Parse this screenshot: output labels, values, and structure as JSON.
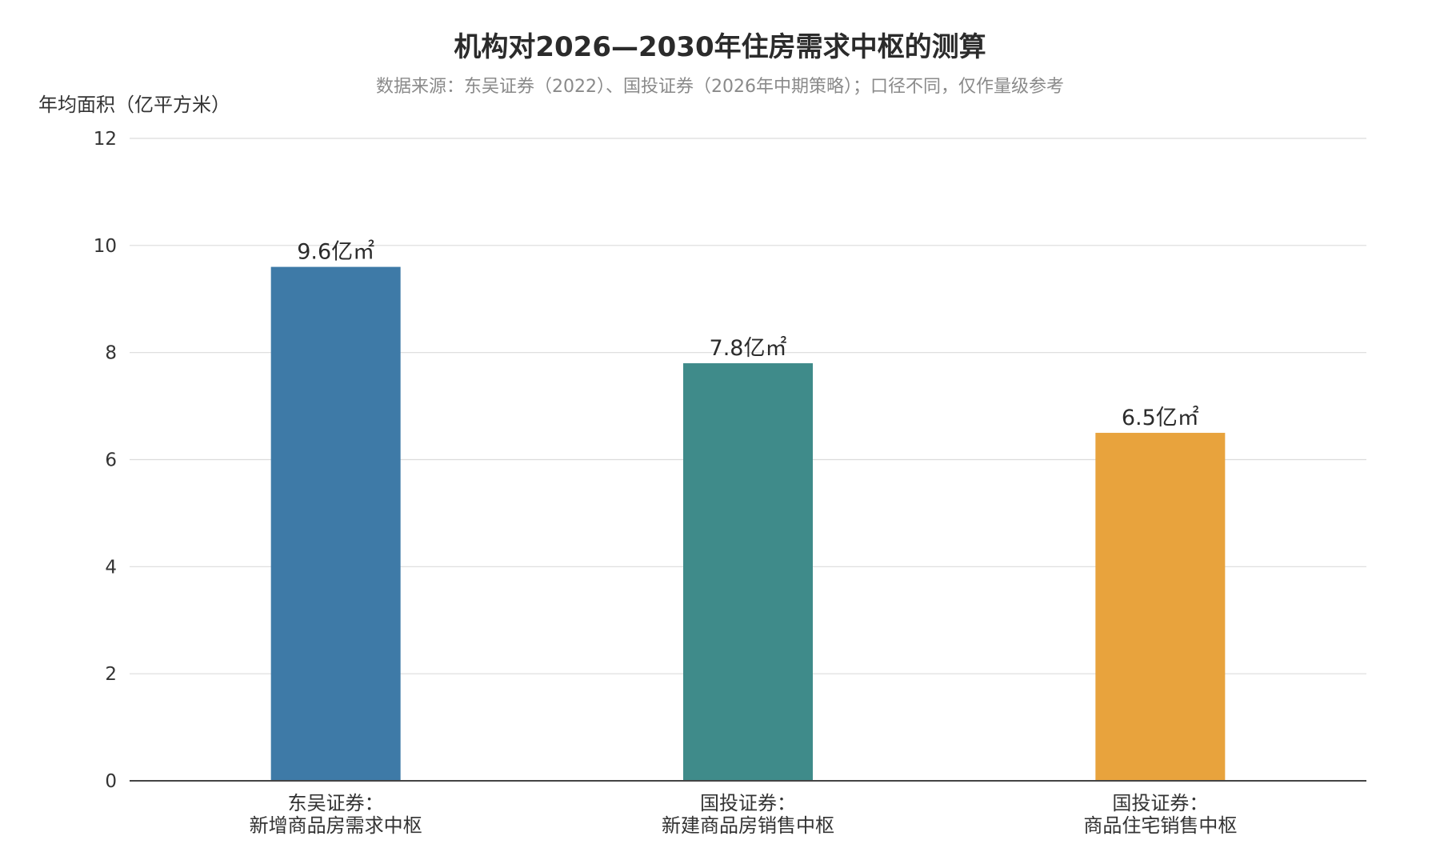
{
  "chart_data": {
    "type": "bar",
    "title": "机构对2026—2030年住房需求中枢的测算",
    "subtitle": "数据来源：东吴证券（2022）、国投证券（2026年中期策略）；口径不同，仅作量级参考",
    "ylabel": "年均面积（亿平方米）",
    "xlabel": "",
    "ylim": [
      0,
      12
    ],
    "yticks": [
      0,
      2,
      4,
      6,
      8,
      10,
      12
    ],
    "grid": true,
    "legend": "none",
    "categories": [
      [
        "东吴证券：",
        "新增商品房需求中枢"
      ],
      [
        "国投证券：",
        "新建商品房销售中枢"
      ],
      [
        "国投证券：",
        "商品住宅销售中枢"
      ]
    ],
    "values": [
      9.6,
      7.8,
      6.5
    ],
    "data_labels": [
      "9.6亿㎡",
      "7.8亿㎡",
      "6.5亿㎡"
    ],
    "colors": [
      "#3e7aa7",
      "#3f8b8a",
      "#e8a33d"
    ]
  }
}
